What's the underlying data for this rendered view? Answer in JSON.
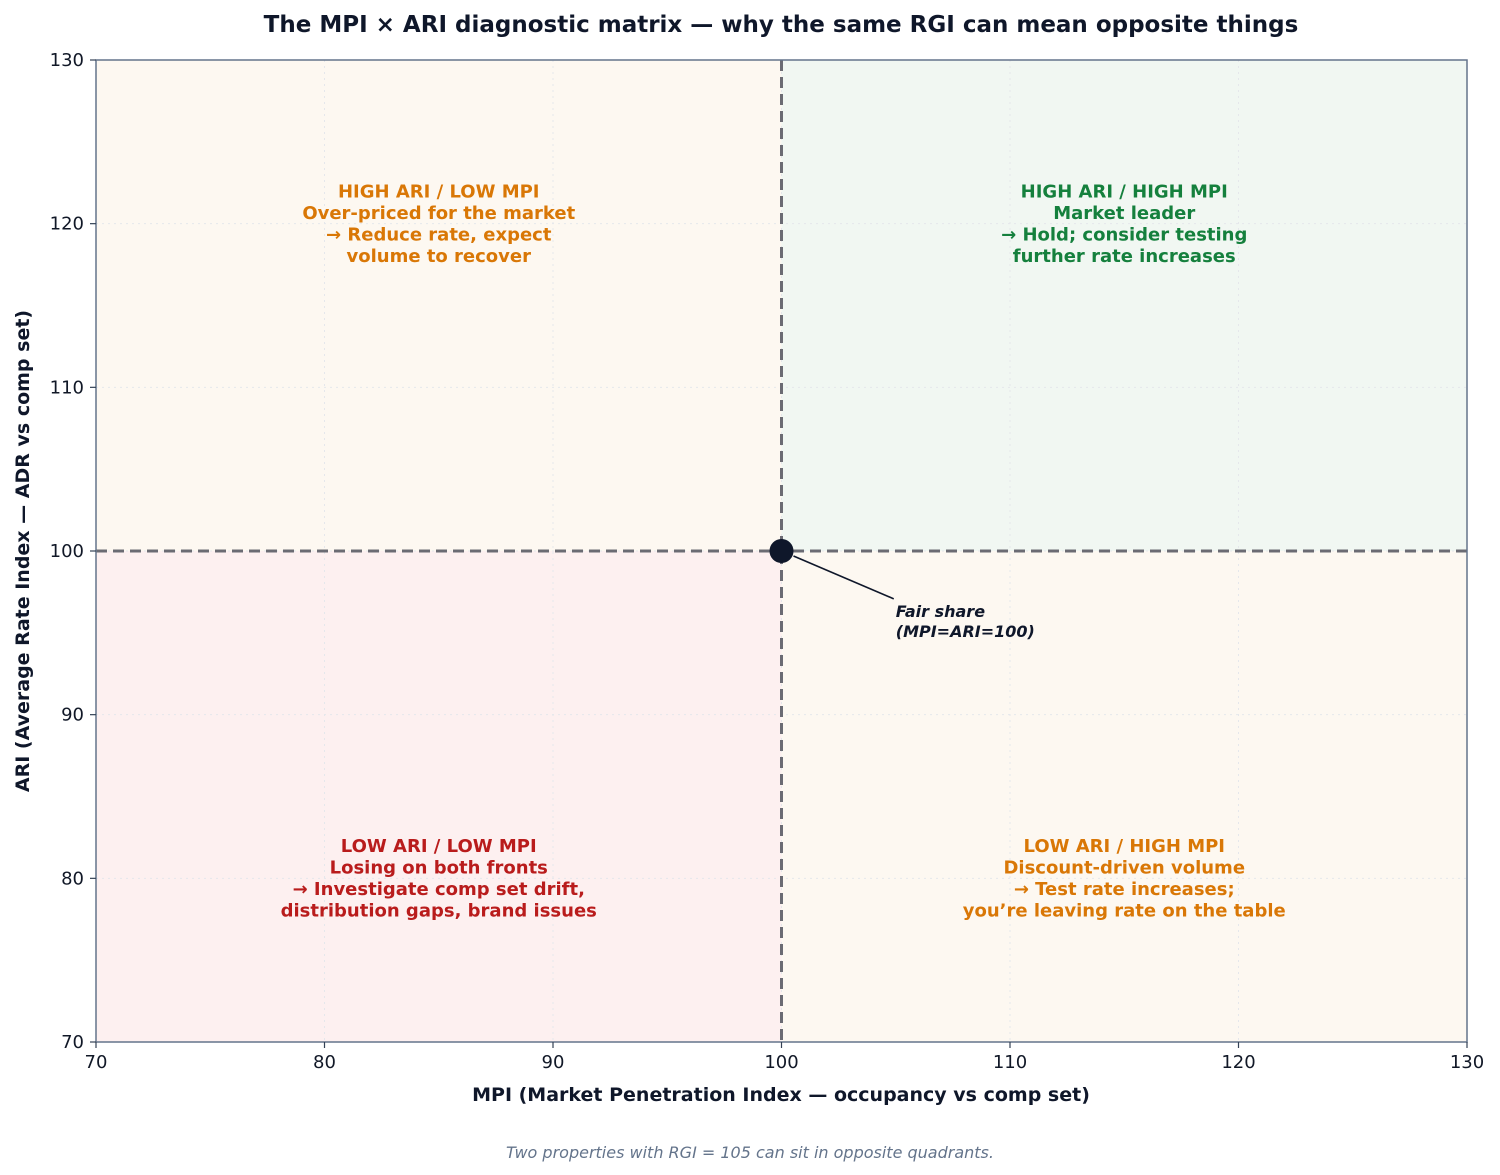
{
  "chart_data": {
    "type": "scatter",
    "title": "The MPI × ARI diagnostic matrix — why the same RGI can mean opposite things",
    "xlabel": "MPI (Market Penetration Index — occupancy vs comp set)",
    "ylabel": "ARI (Average Rate Index — ADR vs comp set)",
    "xlim": [
      70,
      130
    ],
    "ylim": [
      70,
      130
    ],
    "xticks": [
      "70",
      "80",
      "90",
      "100",
      "110",
      "120",
      "130"
    ],
    "yticks": [
      "70",
      "80",
      "90",
      "100",
      "110",
      "120",
      "130"
    ],
    "grid": true,
    "reference_lines": {
      "x": 100,
      "y": 100
    },
    "points": [
      {
        "x": 100,
        "y": 100
      }
    ],
    "quadrants": [
      {
        "id": "high-ari-low-mpi",
        "x_range": [
          70,
          100
        ],
        "y_range": [
          100,
          130
        ],
        "fill": "#fdf8f1",
        "color": "#d97706",
        "lines": [
          "HIGH ARI / LOW MPI",
          "Over-priced for the market",
          "→ Reduce rate, expect",
          "volume to recover"
        ]
      },
      {
        "id": "high-ari-high-mpi",
        "x_range": [
          100,
          130
        ],
        "y_range": [
          100,
          130
        ],
        "fill": "#f1f7f2",
        "color": "#15803d",
        "lines": [
          "HIGH ARI / HIGH MPI",
          "Market leader",
          "→ Hold; consider testing",
          "further rate increases"
        ]
      },
      {
        "id": "low-ari-low-mpi",
        "x_range": [
          70,
          100
        ],
        "y_range": [
          70,
          100
        ],
        "fill": "#fdf0f0",
        "color": "#b91c1c",
        "lines": [
          "LOW ARI / LOW MPI",
          "Losing on both fronts",
          "→ Investigate comp set drift,",
          "distribution gaps, brand issues"
        ]
      },
      {
        "id": "low-ari-high-mpi",
        "x_range": [
          100,
          130
        ],
        "y_range": [
          70,
          100
        ],
        "fill": "#fdf8f1",
        "color": "#d97706",
        "lines": [
          "LOW ARI / HIGH MPI",
          "Discount-driven volume",
          "→ Test rate increases;",
          "you’re leaving rate on the table"
        ]
      }
    ],
    "annotation": {
      "lines": [
        "Fair share",
        "(MPI=ARI=100)"
      ],
      "target": {
        "x": 100,
        "y": 100
      },
      "text_at": {
        "x": 105,
        "y": 95
      }
    },
    "footnote": "Two properties with RGI = 105 can sit in opposite quadrants."
  }
}
